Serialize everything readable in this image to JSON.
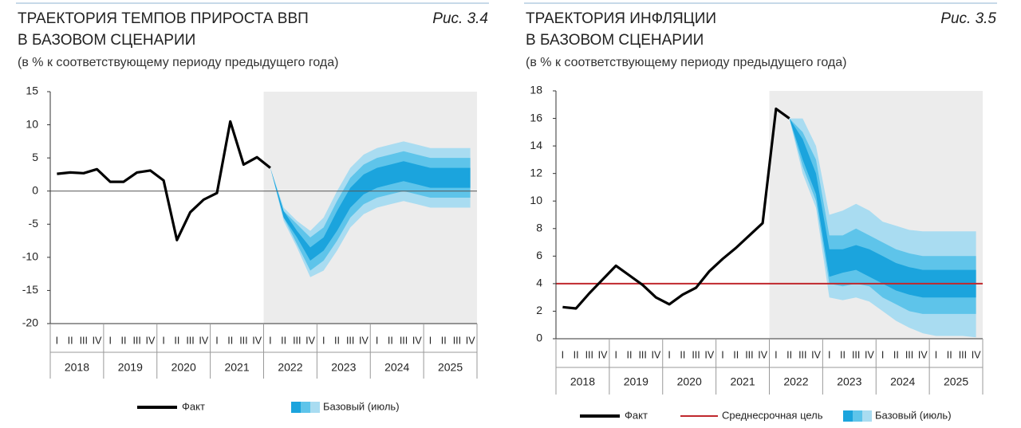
{
  "chart_data": [
    {
      "type": "fan-line",
      "title": [
        "ТРАЕКТОРИЯ ТЕМПОВ ПРИРОСТА ВВП",
        "В БАЗОВОМ СЦЕНАРИИ"
      ],
      "subtitle": "(в % к соответствующему периоду предыдущего года)",
      "figure_label": "Рис. 3.4",
      "categories": [
        "I",
        "II",
        "III",
        "IV",
        "I",
        "II",
        "III",
        "IV",
        "I",
        "II",
        "III",
        "IV",
        "I",
        "II",
        "III",
        "IV",
        "I",
        "II",
        "III",
        "IV",
        "I",
        "II",
        "III",
        "IV",
        "I",
        "II",
        "III",
        "IV",
        "I",
        "II",
        "III",
        "IV"
      ],
      "years": [
        "2018",
        "2019",
        "2020",
        "2021",
        "2022",
        "2023",
        "2024",
        "2025"
      ],
      "ylim": [
        -20,
        15
      ],
      "yticks": [
        15,
        10,
        5,
        0,
        -5,
        -10,
        -15,
        -20
      ],
      "zero_line": true,
      "fact": {
        "name": "Факт",
        "color": "#000000",
        "values": [
          2.6,
          2.8,
          2.7,
          3.3,
          1.4,
          1.4,
          2.8,
          3.1,
          1.6,
          -7.4,
          -3.2,
          -1.3,
          -0.3,
          10.5,
          4.0,
          5.1,
          3.5,
          null,
          null,
          null,
          null,
          null,
          null,
          null,
          null,
          null,
          null,
          null,
          null,
          null,
          null,
          null
        ]
      },
      "fan": {
        "name": "Базовый (июль)",
        "bands": [
          {
            "color": "#a9dcf1",
            "low": [
              null,
              null,
              null,
              null,
              null,
              null,
              null,
              null,
              null,
              null,
              null,
              null,
              null,
              null,
              null,
              null,
              3.5,
              -4.5,
              -8.5,
              -13,
              -12,
              -9,
              -5.5,
              -3.5,
              -2.5,
              -2,
              -1.5,
              -2,
              -2.5,
              -2.5,
              -2.5,
              -2.5
            ],
            "high": [
              null,
              null,
              null,
              null,
              null,
              null,
              null,
              null,
              null,
              null,
              null,
              null,
              null,
              null,
              null,
              null,
              3.5,
              -2.5,
              -4.5,
              -6,
              -4,
              0,
              3.5,
              5.5,
              6.5,
              7,
              7.5,
              7,
              6.5,
              6.5,
              6.5,
              6.5
            ]
          },
          {
            "color": "#5ec4ea",
            "low": [
              null,
              null,
              null,
              null,
              null,
              null,
              null,
              null,
              null,
              null,
              null,
              null,
              null,
              null,
              null,
              null,
              3.5,
              -4,
              -8,
              -12,
              -10.5,
              -7.5,
              -4,
              -2,
              -1,
              -0.5,
              0,
              -0.5,
              -1,
              -1,
              -1,
              -1
            ],
            "high": [
              null,
              null,
              null,
              null,
              null,
              null,
              null,
              null,
              null,
              null,
              null,
              null,
              null,
              null,
              null,
              null,
              3.5,
              -3,
              -5,
              -7,
              -5.5,
              -1.5,
              2,
              4,
              5,
              5.5,
              6,
              5.5,
              5,
              5,
              5,
              5
            ]
          },
          {
            "color": "#1ba4dd",
            "low": [
              null,
              null,
              null,
              null,
              null,
              null,
              null,
              null,
              null,
              null,
              null,
              null,
              null,
              null,
              null,
              null,
              3.5,
              -4,
              -7,
              -10.5,
              -9,
              -6,
              -2.5,
              -0.5,
              0.5,
              1,
              1.5,
              1,
              0.5,
              0.5,
              0.5,
              0.5
            ],
            "high": [
              null,
              null,
              null,
              null,
              null,
              null,
              null,
              null,
              null,
              null,
              null,
              null,
              null,
              null,
              null,
              null,
              3.5,
              -3,
              -6,
              -8.5,
              -7,
              -3,
              0.5,
              2.5,
              3.5,
              4,
              4.5,
              4,
              3.5,
              3.5,
              3.5,
              3.5
            ]
          }
        ]
      }
    },
    {
      "type": "fan-line",
      "title": [
        "ТРАЕКТОРИЯ ИНФЛЯЦИИ",
        "В БАЗОВОМ СЦЕНАРИИ"
      ],
      "subtitle": "(в % к соответствующему периоду предыдущего года)",
      "figure_label": "Рис. 3.5",
      "categories": [
        "I",
        "II",
        "III",
        "IV",
        "I",
        "II",
        "III",
        "IV",
        "I",
        "II",
        "III",
        "IV",
        "I",
        "II",
        "III",
        "IV",
        "I",
        "II",
        "III",
        "IV",
        "I",
        "II",
        "III",
        "IV",
        "I",
        "II",
        "III",
        "IV",
        "I",
        "II",
        "III",
        "IV"
      ],
      "years": [
        "2018",
        "2019",
        "2020",
        "2021",
        "2022",
        "2023",
        "2024",
        "2025"
      ],
      "ylim": [
        0,
        18
      ],
      "yticks": [
        18,
        16,
        14,
        12,
        10,
        8,
        6,
        4,
        2,
        0
      ],
      "zero_line": false,
      "fact": {
        "name": "Факт",
        "color": "#000000",
        "values": [
          2.3,
          2.2,
          3.3,
          4.3,
          5.3,
          4.6,
          3.9,
          3.0,
          2.5,
          3.2,
          3.7,
          4.9,
          5.8,
          6.6,
          7.5,
          8.4,
          16.7,
          16.0,
          null,
          null,
          null,
          null,
          null,
          null,
          null,
          null,
          null,
          null,
          null,
          null,
          null,
          null
        ]
      },
      "target": {
        "name": "Среднесрочная цель",
        "color": "#c0282d",
        "value": 4
      },
      "fan": {
        "name": "Базовый (июль)",
        "bands": [
          {
            "color": "#a9dcf1",
            "low": [
              null,
              null,
              null,
              null,
              null,
              null,
              null,
              null,
              null,
              null,
              null,
              null,
              null,
              null,
              null,
              null,
              null,
              16,
              12,
              9.5,
              3,
              2.8,
              3,
              2.7,
              2,
              1.3,
              0.8,
              0.4,
              0.2,
              0.2,
              0.2,
              0.1
            ],
            "high": [
              null,
              null,
              null,
              null,
              null,
              null,
              null,
              null,
              null,
              null,
              null,
              null,
              null,
              null,
              null,
              null,
              null,
              16,
              16,
              14,
              9,
              9.3,
              9.8,
              9.3,
              8.5,
              8.2,
              7.9,
              7.8,
              7.8,
              7.8,
              7.8,
              7.8
            ]
          },
          {
            "color": "#5ec4ea",
            "low": [
              null,
              null,
              null,
              null,
              null,
              null,
              null,
              null,
              null,
              null,
              null,
              null,
              null,
              null,
              null,
              null,
              null,
              16,
              12.5,
              10,
              4,
              3.8,
              4,
              3.8,
              3,
              2.5,
              2,
              1.8,
              1.8,
              1.8,
              1.8,
              1.8
            ],
            "high": [
              null,
              null,
              null,
              null,
              null,
              null,
              null,
              null,
              null,
              null,
              null,
              null,
              null,
              null,
              null,
              null,
              null,
              16,
              15,
              13,
              7.5,
              7.5,
              8,
              7.5,
              7,
              6.5,
              6.2,
              6,
              6,
              6,
              6,
              6
            ]
          },
          {
            "color": "#1ba4dd",
            "low": [
              null,
              null,
              null,
              null,
              null,
              null,
              null,
              null,
              null,
              null,
              null,
              null,
              null,
              null,
              null,
              null,
              null,
              16,
              13,
              10.5,
              4.5,
              4.8,
              5,
              4.5,
              4,
              3.5,
              3.2,
              3,
              3,
              3,
              3,
              3
            ],
            "high": [
              null,
              null,
              null,
              null,
              null,
              null,
              null,
              null,
              null,
              null,
              null,
              null,
              null,
              null,
              null,
              null,
              null,
              16,
              14.5,
              12,
              6.5,
              6.5,
              6.8,
              6.5,
              6,
              5.5,
              5.2,
              5,
              5,
              5,
              5,
              5
            ]
          }
        ]
      }
    }
  ]
}
